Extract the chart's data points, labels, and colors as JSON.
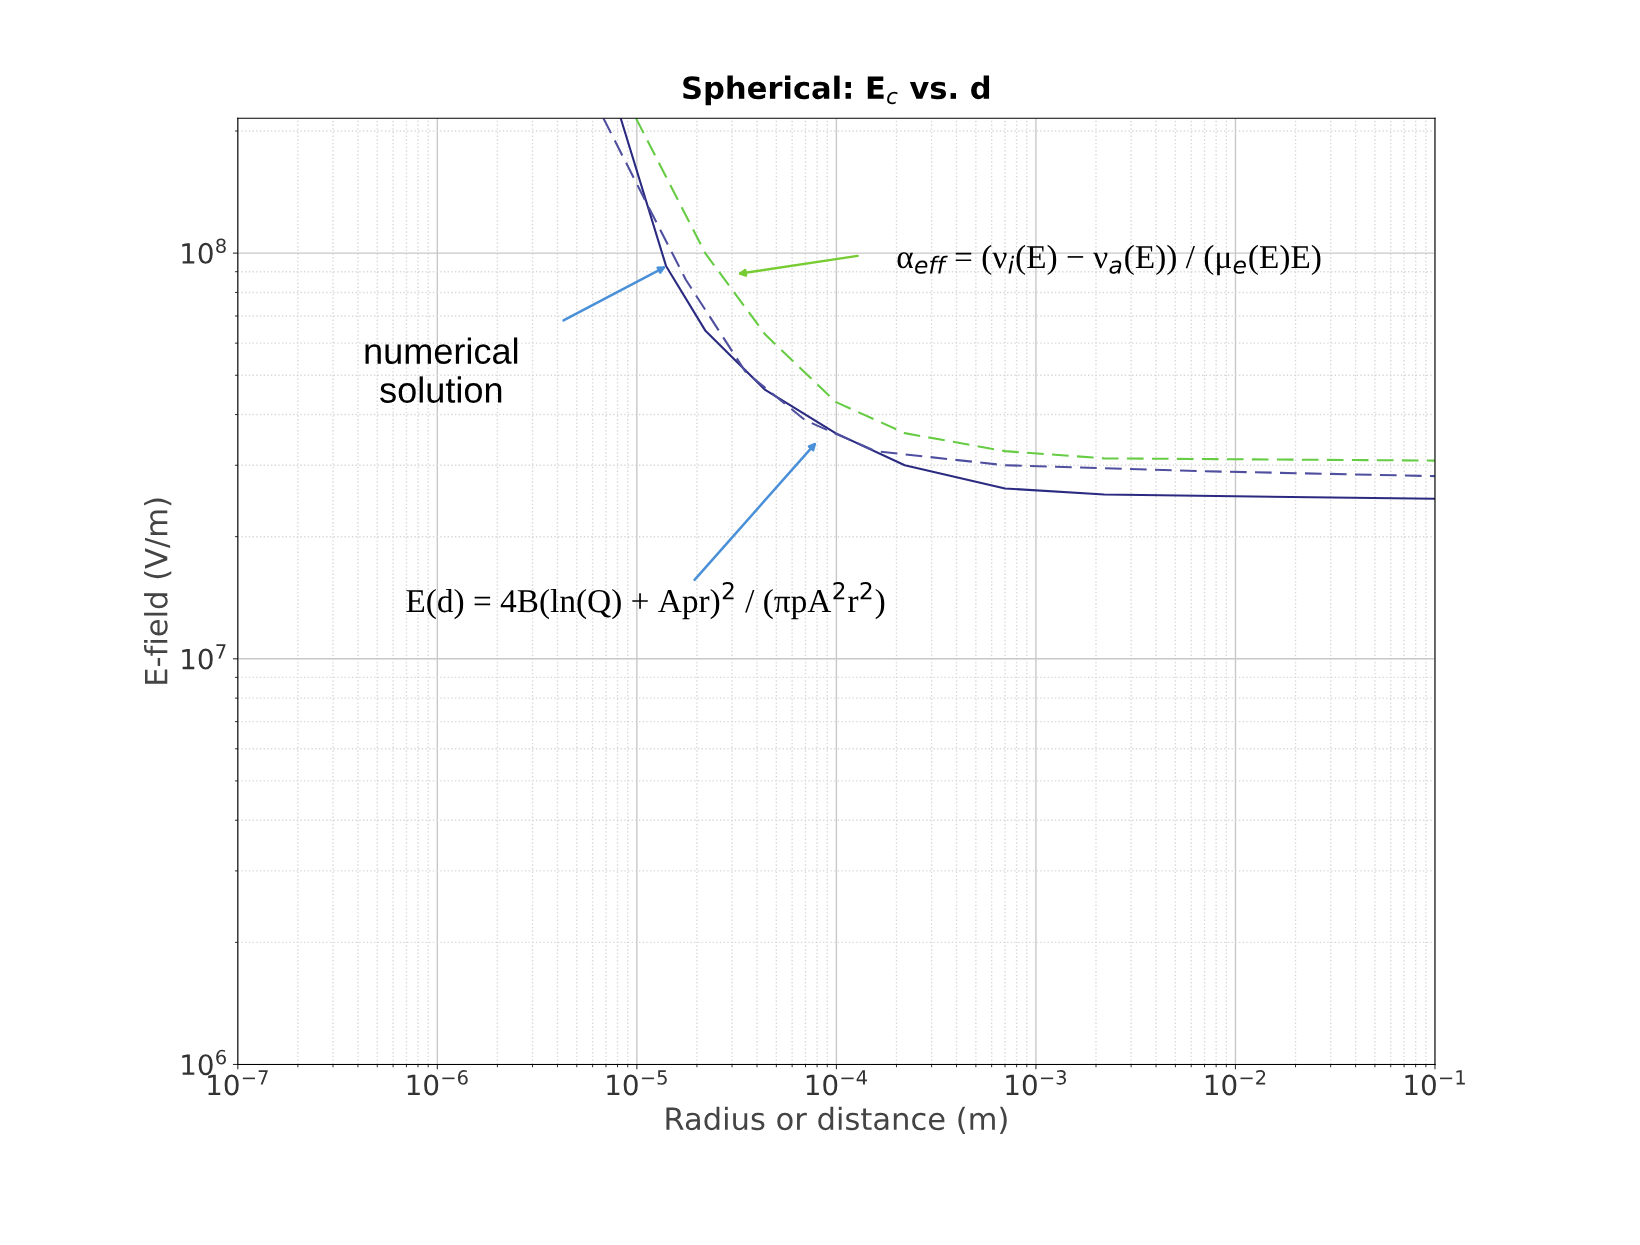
{
  "chart_data": {
    "type": "line",
    "title": "Spherical: E$_{c}$ vs. d",
    "xlabel": "Radius or distance (m)",
    "ylabel": "E-field (V/m)",
    "log": "xy",
    "grid": true,
    "xlim": [
      1e-07,
      0.1
    ],
    "ylim": [
      1000000.0,
      215000000.0
    ],
    "xticks": [
      {
        "value": 1e-07,
        "label": "10$^{−7}$"
      },
      {
        "value": 1e-06,
        "label": "10$^{−6}$"
      },
      {
        "value": 1e-05,
        "label": "10$^{−5}$"
      },
      {
        "value": 0.0001,
        "label": "10$^{−4}$"
      },
      {
        "value": 0.001,
        "label": "10$^{−3}$"
      },
      {
        "value": 0.01,
        "label": "10$^{−2}$"
      },
      {
        "value": 0.1,
        "label": "10$^{−1}$"
      }
    ],
    "yticks": [
      {
        "value": 1000000.0,
        "label": "10$^{6}$"
      },
      {
        "value": 10000000.0,
        "label": "10$^{7}$"
      },
      {
        "value": 100000000.0,
        "label": "10$^{8}$"
      }
    ],
    "series": [
      {
        "color": "#2a2a80",
        "line_style": "solid",
        "x": [
          8.3e-06,
          1.4e-05,
          2.2e-05,
          4.4e-05,
          9.9e-05,
          0.00022,
          0.0007,
          0.0022,
          0.1
        ],
        "values": [
          215000000.0,
          93000000.0,
          64500000.0,
          46000000.0,
          36000000.0,
          30000000.0,
          26300000.0,
          25400000.0,
          24800000.0
        ]
      },
      {
        "color": "#66cc44",
        "line_style": "dashed",
        "x": [
          9.9e-06,
          2.2e-05,
          4.4e-05,
          9.9e-05,
          0.00022,
          0.0007,
          0.0022,
          0.1
        ],
        "values": [
          215000000.0,
          100000000.0,
          63000000.0,
          43000000.0,
          36000000.0,
          32500000.0,
          31200000.0,
          30800000.0
        ]
      },
      {
        "color": "#4f4fa0",
        "line_style": "dashed",
        "x": [
          6.8e-06,
          1.1e-05,
          1.76e-05,
          3.5e-05,
          7e-05,
          0.000157,
          0.0007,
          0.007,
          0.1
        ],
        "values": [
          215000000.0,
          135000000.0,
          86000000.0,
          51000000.0,
          38700000.0,
          32500000.0,
          30000000.0,
          29000000.0,
          28200000.0
        ]
      }
    ],
    "annotations": [
      "α$_{eff}$ = (ν$_{i}$(E) − ν$_{a}$(E)) / (μ$_{e}$(E)E)",
      "numerical\nsolution",
      "E(d) = 4B(ln(Q) + Apr)$^{2}$ / (πpA$^{2}$r$^{2}$)"
    ]
  }
}
